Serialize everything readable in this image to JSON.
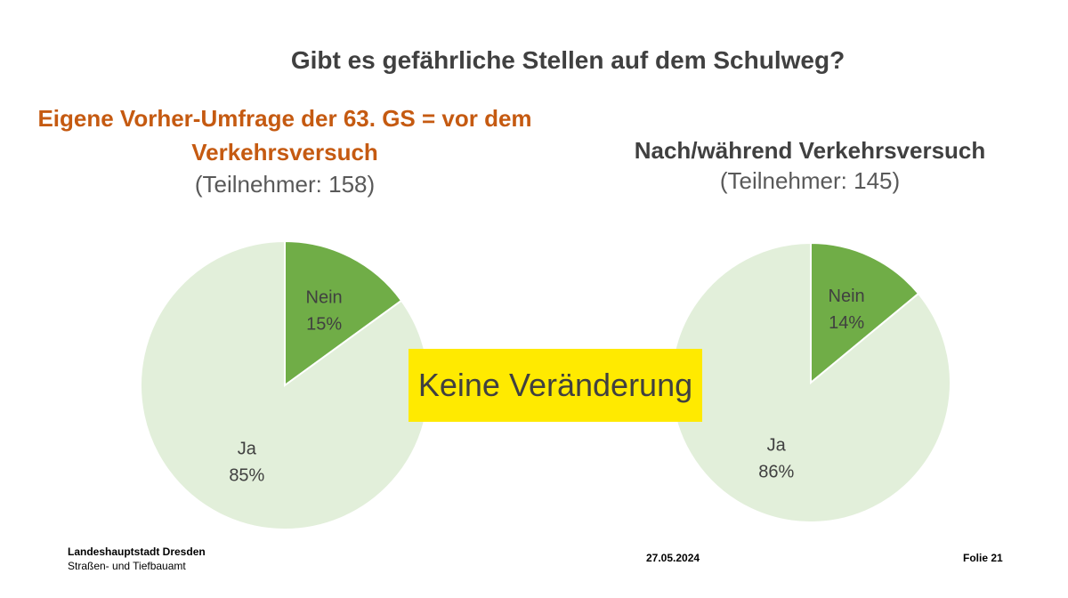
{
  "title": "Gibt es gefährliche Stellen auf dem Schulweg?",
  "chart_data": [
    {
      "type": "pie",
      "heading_line1": "Eigene Vorher-Umfrage der 63. GS = vor dem",
      "heading_line2": "Verkehrsversuch",
      "subtitle": "(Teilnehmer: 158)",
      "heading_color": "#c55a11",
      "slices": [
        {
          "label": "Nein",
          "value": 15,
          "display": "15%",
          "color": "#70ad47"
        },
        {
          "label": "Ja",
          "value": 85,
          "display": "85%",
          "color": "#e2efda"
        }
      ]
    },
    {
      "type": "pie",
      "heading_line1": "Nach/während Verkehrsversuch",
      "subtitle": "(Teilnehmer: 145)",
      "heading_color": "#404040",
      "slices": [
        {
          "label": "Nein",
          "value": 14,
          "display": "14%",
          "color": "#70ad47"
        },
        {
          "label": "Ja",
          "value": 86,
          "display": "86%",
          "color": "#e2efda"
        }
      ]
    }
  ],
  "callout": {
    "text": "Keine Veränderung",
    "color": "#ffea00"
  },
  "footer": {
    "org": "Landeshauptstadt Dresden",
    "dept": "Straßen- und Tiefbauamt",
    "date": "27.05.2024",
    "slide": "Folie 21"
  }
}
